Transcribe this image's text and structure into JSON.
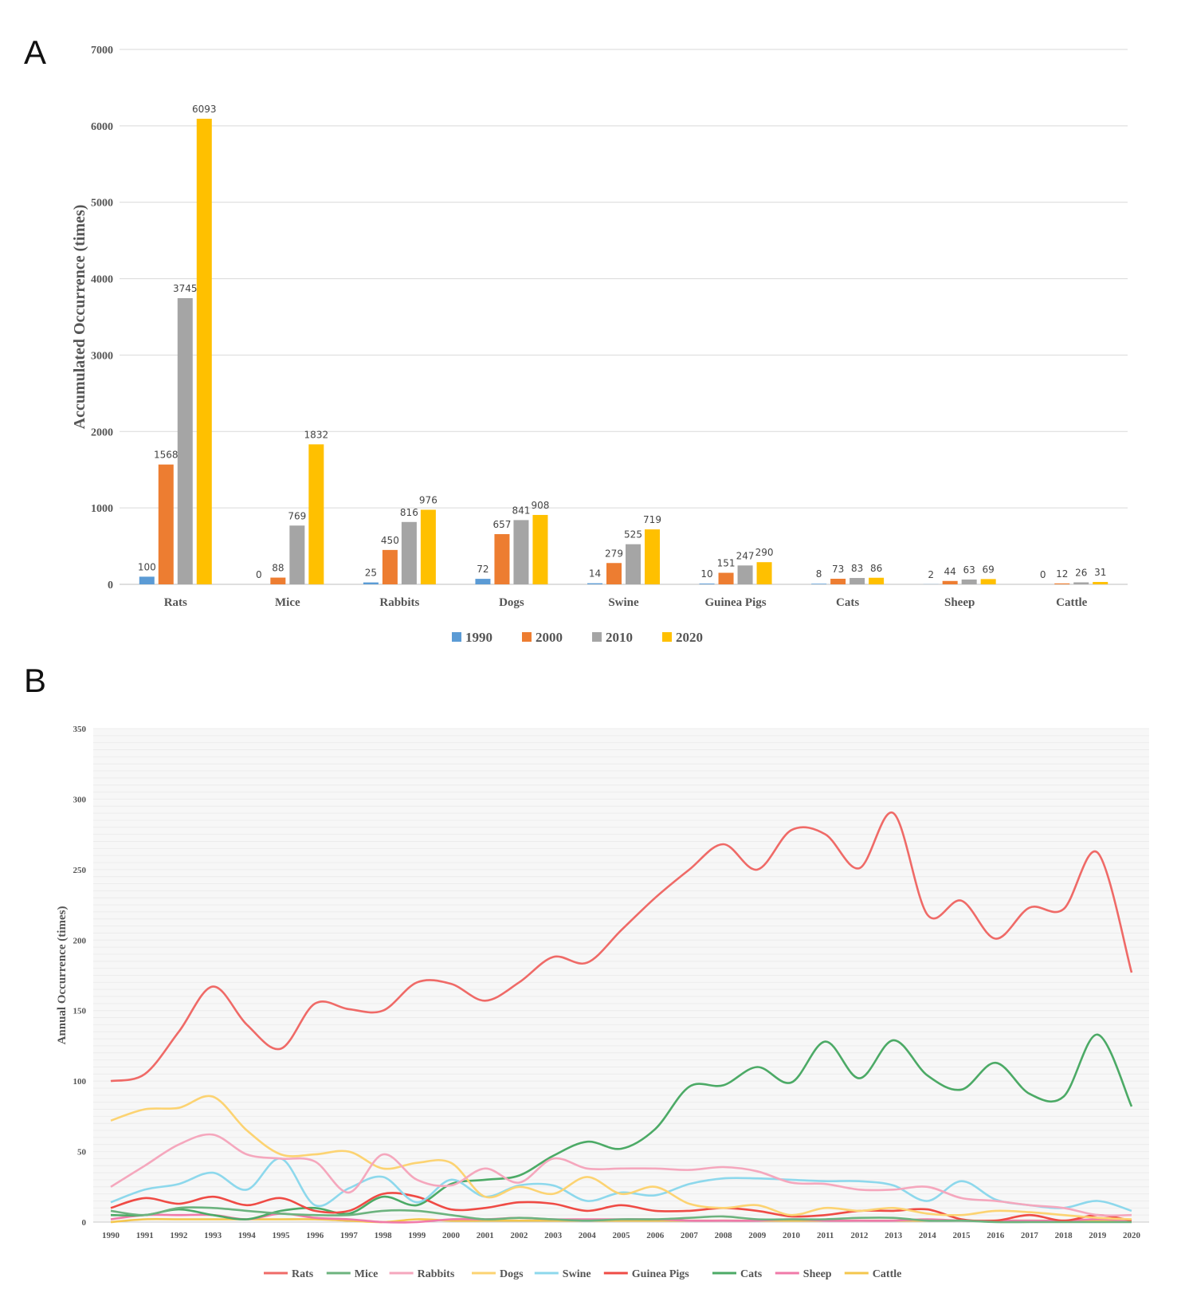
{
  "panels": {
    "a_label": "A",
    "b_label": "B"
  },
  "chart_data": [
    {
      "type": "bar",
      "ylabel": "Accumulated Occurrence (times)",
      "ylim": [
        0,
        7000
      ],
      "yticks": [
        0,
        1000,
        2000,
        3000,
        4000,
        5000,
        6000,
        7000
      ],
      "grid": true,
      "legend_position": "bottom",
      "categories": [
        "Rats",
        "Mice",
        "Rabbits",
        "Dogs",
        "Swine",
        "Guinea Pigs",
        "Cats",
        "Sheep",
        "Cattle"
      ],
      "series": [
        {
          "name": "1990",
          "color": "#5b9bd5",
          "values": [
            100,
            0,
            25,
            72,
            14,
            10,
            8,
            2,
            0
          ]
        },
        {
          "name": "2000",
          "color": "#ed7d31",
          "values": [
            1568,
            88,
            450,
            657,
            279,
            151,
            73,
            44,
            12
          ]
        },
        {
          "name": "2010",
          "color": "#a5a5a5",
          "values": [
            3745,
            769,
            816,
            841,
            525,
            247,
            83,
            63,
            26
          ]
        },
        {
          "name": "2020",
          "color": "#ffc000",
          "values": [
            6093,
            1832,
            976,
            908,
            719,
            290,
            86,
            69,
            31
          ]
        }
      ]
    },
    {
      "type": "line",
      "ylabel": "Annual Occurrence (times)",
      "ylim": [
        0,
        350
      ],
      "yticks": [
        0,
        50,
        100,
        150,
        200,
        250,
        300,
        350
      ],
      "legend_position": "bottom",
      "x": [
        "1990",
        "1991",
        "1992",
        "1993",
        "1994",
        "1995",
        "1996",
        "1997",
        "1998",
        "1999",
        "2000",
        "2001",
        "2002",
        "2003",
        "2004",
        "2005",
        "2006",
        "2007",
        "2008",
        "2009",
        "2010",
        "2011",
        "2012",
        "2013",
        "2014",
        "2015",
        "2016",
        "2017",
        "2018",
        "2019",
        "2020"
      ],
      "series": [
        {
          "name": "Rats",
          "color": "#ef6a67",
          "values": [
            100,
            105,
            135,
            167,
            140,
            123,
            155,
            151,
            150,
            170,
            169,
            157,
            170,
            188,
            184,
            207,
            230,
            250,
            268,
            250,
            278,
            275,
            251,
            290,
            218,
            228,
            201,
            223,
            222,
            262,
            177
          ]
        },
        {
          "name": "Mice",
          "color": "#6cb37e",
          "values": [
            8,
            5,
            10,
            10,
            8,
            6,
            5,
            5,
            8,
            8,
            5,
            2,
            3,
            2,
            1,
            2,
            2,
            3,
            4,
            2,
            2,
            2,
            3,
            3,
            1,
            1,
            0,
            0,
            0,
            0,
            0
          ]
        },
        {
          "name": "Rabbits",
          "color": "#f5a7bd",
          "values": [
            25,
            40,
            55,
            62,
            48,
            45,
            43,
            21,
            48,
            30,
            26,
            38,
            28,
            45,
            38,
            38,
            38,
            37,
            39,
            36,
            28,
            27,
            23,
            23,
            25,
            17,
            15,
            12,
            10,
            5,
            5
          ]
        },
        {
          "name": "Dogs",
          "color": "#fcd372",
          "values": [
            72,
            80,
            81,
            89,
            65,
            48,
            48,
            50,
            38,
            42,
            42,
            18,
            25,
            20,
            32,
            20,
            25,
            13,
            10,
            12,
            5,
            10,
            8,
            10,
            6,
            5,
            8,
            7,
            5,
            3,
            2
          ]
        },
        {
          "name": "Swine",
          "color": "#8dd8ec",
          "values": [
            14,
            23,
            27,
            35,
            23,
            45,
            12,
            24,
            32,
            14,
            30,
            18,
            26,
            26,
            15,
            21,
            19,
            27,
            31,
            31,
            30,
            29,
            29,
            26,
            15,
            29,
            16,
            12,
            10,
            15,
            8
          ]
        },
        {
          "name": "Guinea Pigs",
          "color": "#ef4b45",
          "values": [
            10,
            17,
            13,
            18,
            12,
            17,
            8,
            8,
            20,
            18,
            9,
            10,
            14,
            13,
            8,
            12,
            8,
            8,
            10,
            8,
            4,
            5,
            8,
            8,
            9,
            2,
            1,
            5,
            1,
            5,
            1
          ]
        },
        {
          "name": "Cats",
          "color": "#4caa66",
          "values": [
            5,
            5,
            9,
            5,
            2,
            8,
            10,
            6,
            18,
            12,
            27,
            30,
            33,
            47,
            57,
            52,
            66,
            96,
            97,
            110,
            99,
            128,
            102,
            129,
            104,
            94,
            113,
            91,
            89,
            133,
            82
          ]
        },
        {
          "name": "Sheep",
          "color": "#f07aa8",
          "values": [
            2,
            5,
            5,
            5,
            2,
            6,
            3,
            2,
            0,
            0,
            2,
            2,
            3,
            2,
            2,
            2,
            2,
            1,
            1,
            1,
            2,
            1,
            1,
            1,
            2,
            1,
            1,
            1,
            1,
            2,
            1
          ]
        },
        {
          "name": "Cattle",
          "color": "#f4c64c",
          "values": [
            0,
            2,
            2,
            2,
            2,
            2,
            2,
            1,
            0,
            2,
            1,
            1,
            1,
            1,
            1,
            1,
            1,
            1,
            1,
            1,
            1,
            1,
            1,
            1,
            1,
            1,
            1,
            1,
            1,
            1,
            1
          ]
        }
      ]
    }
  ]
}
